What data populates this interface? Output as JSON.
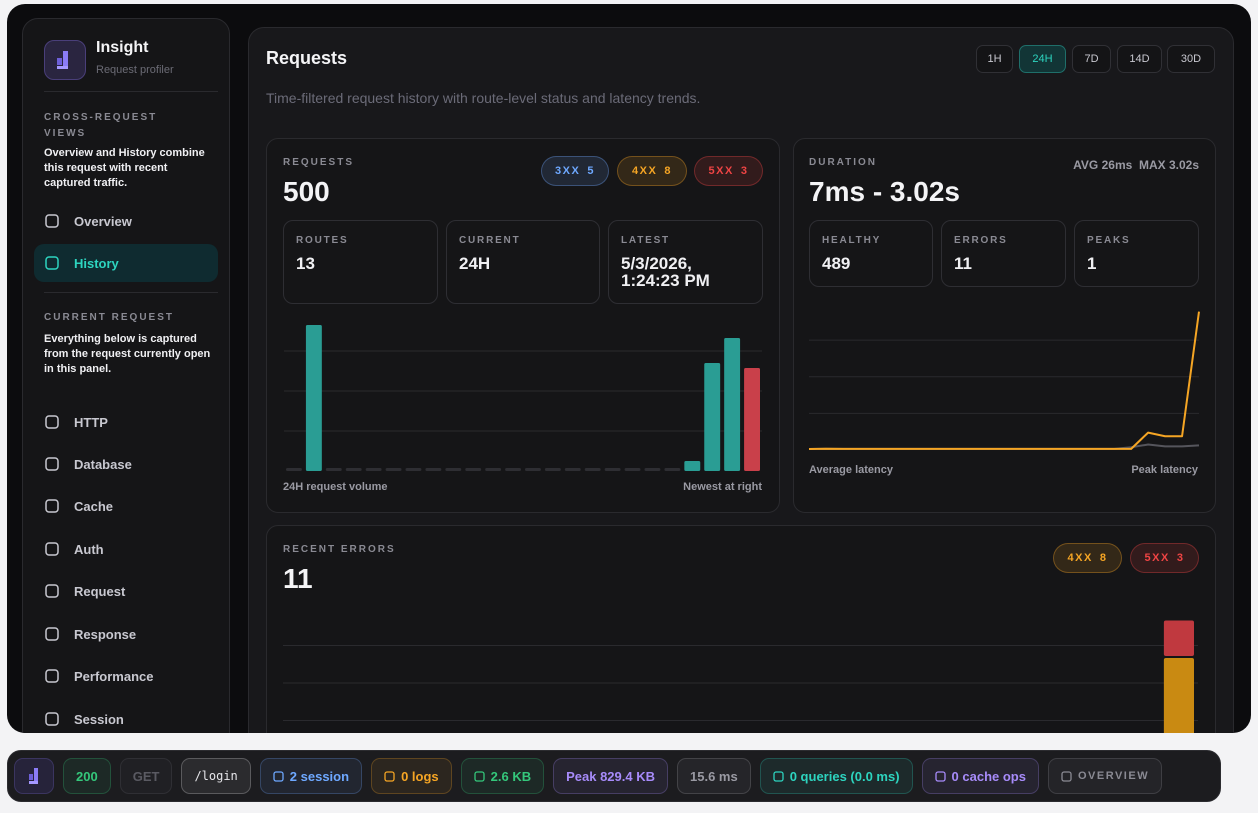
{
  "sidebar": {
    "app_name": "Insight",
    "app_subtitle": "Request profiler",
    "active_item": "History",
    "sections": [
      {
        "heading": "CROSS-REQUEST VIEWS",
        "description": "Overview and History combine this request with recent captured traffic.",
        "items": [
          "Overview",
          "History"
        ]
      },
      {
        "heading": "CURRENT REQUEST",
        "description": "Everything below is captured from the request currently open in this panel.",
        "items": [
          "HTTP",
          "Database",
          "Cache",
          "Auth",
          "Request",
          "Response",
          "Performance",
          "Session"
        ]
      }
    ]
  },
  "header": {
    "title": "Requests",
    "subtitle": "Time-filtered request history with route-level status and latency trends.",
    "ranges": [
      "1H",
      "24H",
      "7D",
      "14D",
      "30D"
    ],
    "active_range": "24H"
  },
  "requests_card": {
    "label": "REQUESTS",
    "value": 500,
    "badges": [
      {
        "label": "3XX",
        "count": 5,
        "color": "#6ea8ff"
      },
      {
        "label": "4XX",
        "count": 8,
        "color": "#f5a524"
      },
      {
        "label": "5XX",
        "count": 3,
        "color": "#ef4444"
      }
    ],
    "stats": [
      {
        "label": "ROUTES",
        "value": 13
      },
      {
        "label": "CURRENT",
        "value": "24H"
      },
      {
        "label": "LATEST",
        "value": "5/3/2026, 1:24:23 PM"
      }
    ],
    "chart": {
      "type": "bar",
      "values": [
        0,
        146,
        0,
        0,
        0,
        0,
        0,
        0,
        0,
        0,
        0,
        0,
        0,
        0,
        0,
        0,
        0,
        0,
        0,
        0,
        10,
        108,
        133,
        103
      ],
      "colors": [
        "#2e2e33",
        "#2a9d94",
        "#2e2e33",
        "#2e2e33",
        "#2e2e33",
        "#2e2e33",
        "#2e2e33",
        "#2e2e33",
        "#2e2e33",
        "#2e2e33",
        "#2e2e33",
        "#2e2e33",
        "#2e2e33",
        "#2e2e33",
        "#2e2e33",
        "#2e2e33",
        "#2e2e33",
        "#2e2e33",
        "#2e2e33",
        "#2e2e33",
        "#2a9d94",
        "#2a9d94",
        "#2a9d94",
        "#c9404a"
      ],
      "ylim": [
        0,
        150
      ],
      "yticks": [
        40,
        80,
        120
      ],
      "grid": true,
      "caption_left": "24H request volume",
      "caption_right": "Newest at right"
    }
  },
  "duration_card": {
    "label": "DURATION",
    "value": "7ms - 3.02s",
    "avg": "AVG 26ms",
    "max": "MAX 3.02s",
    "stats": [
      {
        "label": "HEALTHY",
        "value": 489
      },
      {
        "label": "ERRORS",
        "value": 11
      },
      {
        "label": "PEAKS",
        "value": 1
      }
    ],
    "chart": {
      "type": "line",
      "ylim": [
        0,
        3100
      ],
      "yticks": [
        800,
        1600,
        2400
      ],
      "grid": true,
      "series": [
        {
          "name": "Average latency",
          "color": "#55555c",
          "values": [
            22,
            28,
            24,
            24,
            24,
            24,
            24,
            24,
            24,
            24,
            24,
            24,
            24,
            24,
            24,
            24,
            24,
            24,
            24,
            60,
            120,
            80,
            80,
            100
          ]
        },
        {
          "name": "Peak latency",
          "color": "#f5a524",
          "values": [
            22,
            28,
            24,
            24,
            24,
            24,
            24,
            24,
            24,
            24,
            24,
            24,
            24,
            24,
            24,
            24,
            24,
            24,
            24,
            24,
            380,
            300,
            300,
            3020
          ]
        }
      ]
    }
  },
  "errors_card": {
    "label": "RECENT ERRORS",
    "value": 11,
    "badges": [
      {
        "label": "4XX",
        "count": 8,
        "color": "#f5a524"
      },
      {
        "label": "5XX",
        "count": 3,
        "color": "#ef4444"
      }
    ],
    "chart": {
      "type": "stacked_bar",
      "ylim": [
        0,
        12
      ],
      "yticks": [
        3,
        6,
        9
      ],
      "grid": true,
      "series": [
        {
          "color": "#c98a12",
          "values": [
            0,
            0,
            0,
            0,
            0,
            0,
            0,
            0,
            0,
            0,
            0,
            0,
            0,
            0,
            0,
            0,
            0,
            0,
            0,
            0,
            0,
            0,
            0,
            8
          ]
        },
        {
          "color": "#c0393f",
          "values": [
            0,
            0,
            0,
            0,
            0,
            0,
            0,
            0,
            0,
            0,
            0,
            0,
            0,
            0,
            0,
            0,
            0,
            0,
            0,
            0,
            0,
            0,
            0,
            3
          ]
        }
      ]
    }
  },
  "footer": {
    "items": [
      {
        "text": "200",
        "color": "#34c77b"
      },
      {
        "text": "GET",
        "color": "#5a5a62"
      },
      {
        "text": "/login",
        "color": "#e6e6ea"
      },
      {
        "text": "2 session",
        "color": "#6ea8ff"
      },
      {
        "text": "0 logs",
        "color": "#f5a524"
      },
      {
        "text": "2.6 KB",
        "color": "#34c77b"
      },
      {
        "text": "Peak 829.4 KB",
        "color": "#a78bfa"
      },
      {
        "text": "15.6 ms",
        "color": "#9a9aa3"
      },
      {
        "text": "0 queries (0.0 ms)",
        "color": "#2dd4bf"
      },
      {
        "text": "0 cache ops",
        "color": "#a78bfa"
      },
      {
        "text": "OVERVIEW",
        "color": "#8a8a93"
      }
    ]
  }
}
